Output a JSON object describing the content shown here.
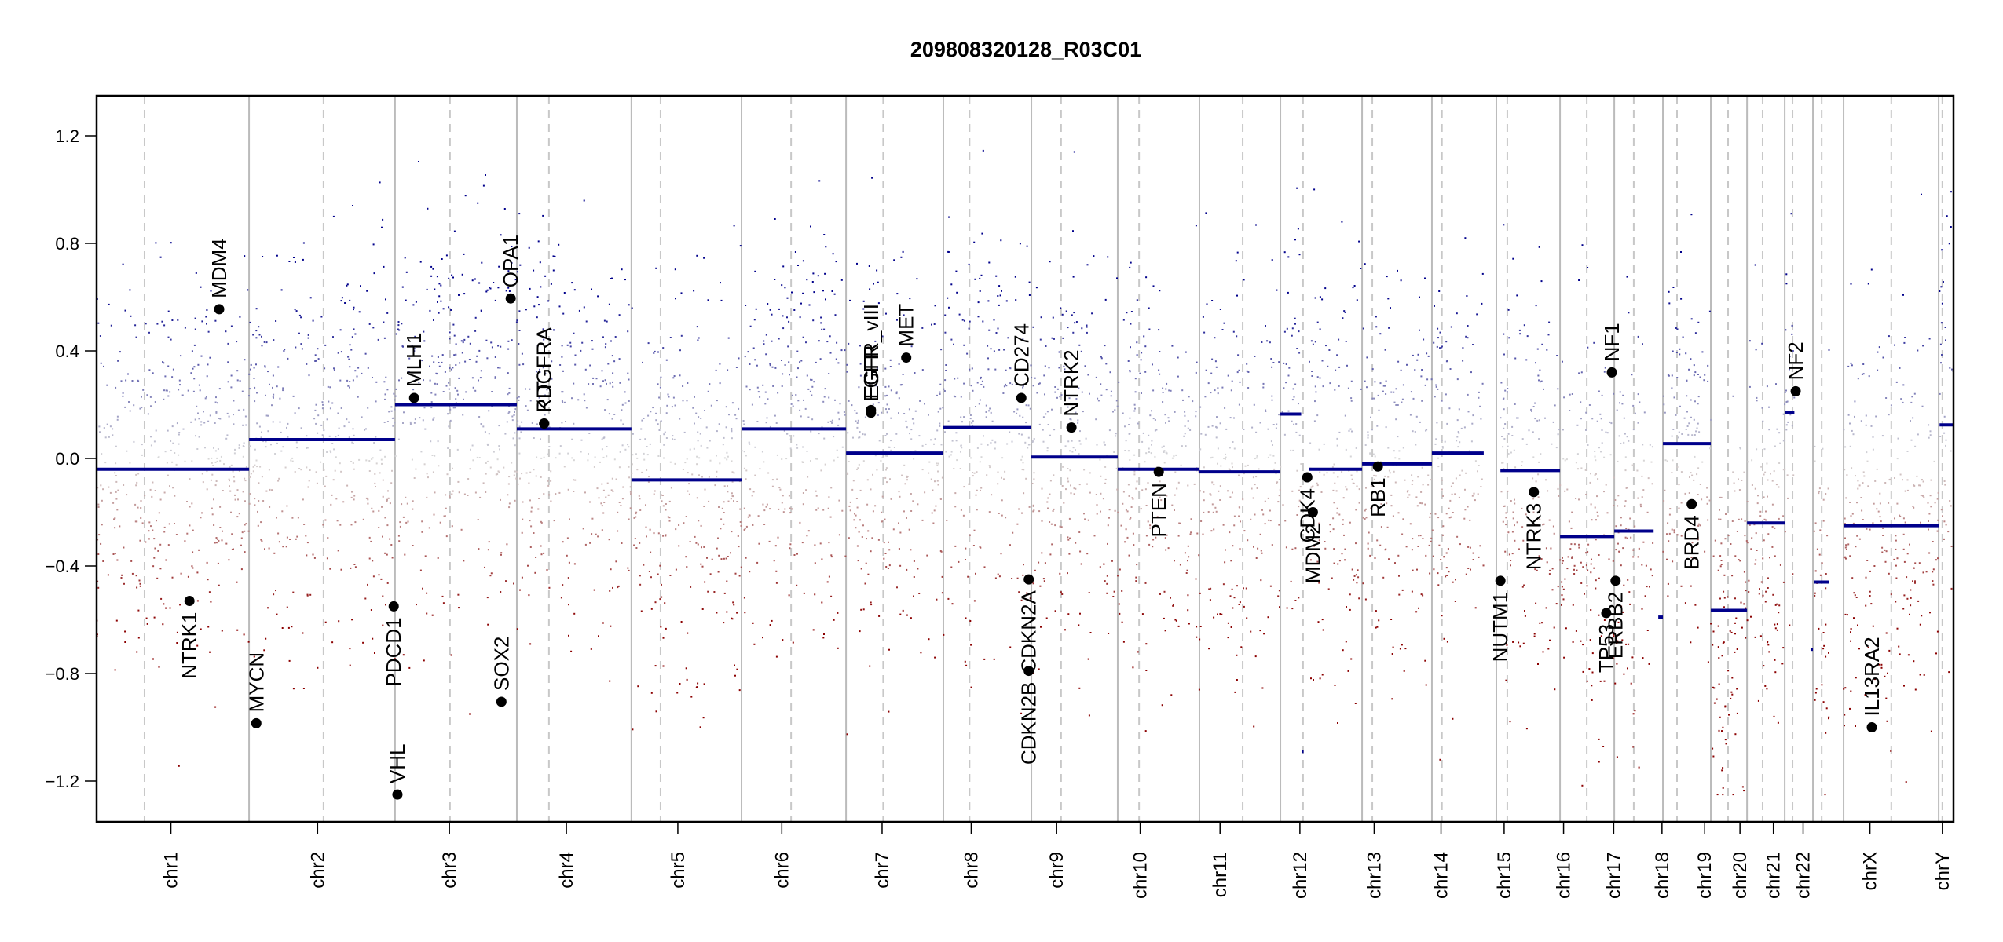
{
  "chart_data": {
    "type": "scatter",
    "title": "209808320128_R03C01",
    "xlabel": "",
    "ylabel": "",
    "ylim": [
      -1.35,
      1.35
    ],
    "yticks": [
      1.2,
      0.8,
      0.4,
      0.0,
      -0.4,
      -0.8,
      -1.2
    ],
    "ytick_labels": [
      "1.2",
      "0.8",
      "0.4",
      "0.0",
      "-0.4",
      "-0.8",
      "-1.2"
    ],
    "grid": false,
    "legend": "none",
    "point_color_high": "#00008b",
    "point_color_low": "#8b0000",
    "point_color_mid": "#d8d8d8",
    "segment_color": "#00008b",
    "boundary_color": "#bbbbbb",
    "floor_value": -1.25,
    "chromosomes": [
      {
        "name": "chr1",
        "start": 0.0,
        "end": 0.0821,
        "centromere": 0.0258
      },
      {
        "name": "chr2",
        "start": 0.0821,
        "end": 0.1607,
        "centromere": 0.1222
      },
      {
        "name": "chr3",
        "start": 0.1607,
        "end": 0.2263,
        "centromere": 0.1903
      },
      {
        "name": "chr4",
        "start": 0.2263,
        "end": 0.288,
        "centromere": 0.2436
      },
      {
        "name": "chr5",
        "start": 0.288,
        "end": 0.3473,
        "centromere": 0.3037
      },
      {
        "name": "chr6",
        "start": 0.3473,
        "end": 0.4036,
        "centromere": 0.374
      },
      {
        "name": "chr7",
        "start": 0.4036,
        "end": 0.456,
        "centromere": 0.4236
      },
      {
        "name": "chr8",
        "start": 0.456,
        "end": 0.5034,
        "centromere": 0.4701
      },
      {
        "name": "chr9",
        "start": 0.5034,
        "end": 0.5499,
        "centromere": 0.5194
      },
      {
        "name": "chr10",
        "start": 0.5499,
        "end": 0.5939,
        "centromere": 0.5614
      },
      {
        "name": "chr11",
        "start": 0.5939,
        "end": 0.6375,
        "centromere": 0.6172
      },
      {
        "name": "chr12",
        "start": 0.6375,
        "end": 0.6815,
        "centromere": 0.6497
      },
      {
        "name": "chr13",
        "start": 0.6815,
        "end": 0.7191,
        "centromere": 0.687
      },
      {
        "name": "chr14",
        "start": 0.7191,
        "end": 0.7538,
        "centromere": 0.7245
      },
      {
        "name": "chr15",
        "start": 0.7538,
        "end": 0.7881,
        "centromere": 0.7597
      },
      {
        "name": "chr16",
        "start": 0.7881,
        "end": 0.8173,
        "centromere": 0.8025
      },
      {
        "name": "chr17",
        "start": 0.8173,
        "end": 0.8435,
        "centromere": 0.8278
      },
      {
        "name": "chr18",
        "start": 0.8435,
        "end": 0.8693,
        "centromere": 0.8511
      },
      {
        "name": "chr19",
        "start": 0.8693,
        "end": 0.8888,
        "centromere": 0.8786
      },
      {
        "name": "chr20",
        "start": 0.8888,
        "end": 0.9091,
        "centromere": 0.8972
      },
      {
        "name": "chr21",
        "start": 0.9091,
        "end": 0.9243,
        "centromere": 0.9133
      },
      {
        "name": "chr22",
        "start": 0.9243,
        "end": 0.9408,
        "centromere": 0.929
      },
      {
        "name": "chrX",
        "start": 0.9408,
        "end": 0.992,
        "centromere": 0.9665
      },
      {
        "name": "chrY",
        "start": 0.992,
        "end": 1.0,
        "centromere": 0.994
      }
    ],
    "xticks": [
      {
        "label": "chr1",
        "pos": 0.04
      },
      {
        "label": "chr2",
        "pos": 0.119
      },
      {
        "label": "chr3",
        "pos": 0.19
      },
      {
        "label": "chr4",
        "pos": 0.253
      },
      {
        "label": "chr5",
        "pos": 0.313
      },
      {
        "label": "chr6",
        "pos": 0.369
      },
      {
        "label": "chr7",
        "pos": 0.423
      },
      {
        "label": "chr8",
        "pos": 0.471
      },
      {
        "label": "chr9",
        "pos": 0.517
      },
      {
        "label": "chr10",
        "pos": 0.562
      },
      {
        "label": "chr11",
        "pos": 0.605
      },
      {
        "label": "chr12",
        "pos": 0.648
      },
      {
        "label": "chr13",
        "pos": 0.688
      },
      {
        "label": "chr14",
        "pos": 0.724
      },
      {
        "label": "chr15",
        "pos": 0.758
      },
      {
        "label": "chr16",
        "pos": 0.79
      },
      {
        "label": "chr17",
        "pos": 0.817
      },
      {
        "label": "chr18",
        "pos": 0.843
      },
      {
        "label": "chr19",
        "pos": 0.866
      },
      {
        "label": "chr20",
        "pos": 0.885
      },
      {
        "label": "chr21",
        "pos": 0.903
      },
      {
        "label": "chr22",
        "pos": 0.919
      },
      {
        "label": "chrX",
        "pos": 0.955
      },
      {
        "label": "chrY",
        "pos": 0.994
      }
    ],
    "segments": [
      {
        "x0": 0.0,
        "x1": 0.0821,
        "value": -0.04
      },
      {
        "x0": 0.0821,
        "x1": 0.1607,
        "value": 0.07
      },
      {
        "x0": 0.1607,
        "x1": 0.2263,
        "value": 0.2
      },
      {
        "x0": 0.2263,
        "x1": 0.288,
        "value": 0.11
      },
      {
        "x0": 0.288,
        "x1": 0.3473,
        "value": -0.08
      },
      {
        "x0": 0.3473,
        "x1": 0.4036,
        "value": 0.11
      },
      {
        "x0": 0.4036,
        "x1": 0.456,
        "value": 0.02
      },
      {
        "x0": 0.456,
        "x1": 0.5034,
        "value": 0.115
      },
      {
        "x0": 0.5034,
        "x1": 0.5499,
        "value": 0.005
      },
      {
        "x0": 0.5499,
        "x1": 0.5939,
        "value": -0.04
      },
      {
        "x0": 0.5939,
        "x1": 0.6375,
        "value": -0.05
      },
      {
        "x0": 0.6375,
        "x1": 0.6487,
        "value": 0.165
      },
      {
        "x0": 0.653,
        "x1": 0.6815,
        "value": -0.04
      },
      {
        "x0": 0.6815,
        "x1": 0.7191,
        "value": -0.02
      },
      {
        "x0": 0.7191,
        "x1": 0.747,
        "value": 0.02
      },
      {
        "x0": 0.756,
        "x1": 0.7881,
        "value": -0.045
      },
      {
        "x0": 0.7881,
        "x1": 0.8173,
        "value": -0.29
      },
      {
        "x0": 0.8173,
        "x1": 0.8385,
        "value": -0.27
      },
      {
        "x0": 0.841,
        "x1": 0.8435,
        "value": -0.59
      },
      {
        "x0": 0.8435,
        "x1": 0.8693,
        "value": 0.055
      },
      {
        "x0": 0.8693,
        "x1": 0.8888,
        "value": -0.565
      },
      {
        "x0": 0.8888,
        "x1": 0.9091,
        "value": -0.24
      },
      {
        "x0": 0.9091,
        "x1": 0.9143,
        "value": 0.17
      },
      {
        "x0": 0.923,
        "x1": 0.9243,
        "value": -0.71
      },
      {
        "x0": 0.925,
        "x1": 0.933,
        "value": -0.46
      },
      {
        "x0": 0.9408,
        "x1": 0.992,
        "value": -0.25
      },
      {
        "x0": 0.9925,
        "x1": 1.0,
        "value": 0.125
      },
      {
        "x0": 0.649,
        "x1": 0.65,
        "value": -1.09
      }
    ],
    "genes": [
      {
        "name": "MDM4",
        "pos": 0.066,
        "value": 0.555,
        "label_side": "above"
      },
      {
        "name": "NTRK1",
        "pos": 0.05,
        "value": -0.53,
        "label_side": "below"
      },
      {
        "name": "MYCN",
        "pos": 0.086,
        "value": -0.985,
        "label_side": "above"
      },
      {
        "name": "MLH1",
        "pos": 0.171,
        "value": 0.225,
        "label_side": "above"
      },
      {
        "name": "PDCD1",
        "pos": 0.16,
        "value": -0.55,
        "label_side": "below"
      },
      {
        "name": "VHL",
        "pos": 0.162,
        "value": -1.25,
        "label_side": "above"
      },
      {
        "name": "OPA1",
        "pos": 0.223,
        "value": 0.595,
        "label_side": "above"
      },
      {
        "name": "SOX2",
        "pos": 0.218,
        "value": -0.905,
        "label_side": "above"
      },
      {
        "name": "PDGFRA",
        "pos": 0.241,
        "value": 0.13,
        "label_side": "above"
      },
      {
        "name": "KIT",
        "pos": 0.241,
        "value": 0.13,
        "label_side": "above"
      },
      {
        "name": "EGFR",
        "pos": 0.417,
        "value": 0.17,
        "label_side": "above"
      },
      {
        "name": "EGFR_vIII",
        "pos": 0.417,
        "value": 0.18,
        "label_side": "above"
      },
      {
        "name": "MET",
        "pos": 0.436,
        "value": 0.375,
        "label_side": "above"
      },
      {
        "name": "CD274",
        "pos": 0.498,
        "value": 0.225,
        "label_side": "above"
      },
      {
        "name": "CDKN2A",
        "pos": 0.502,
        "value": -0.45,
        "label_side": "below"
      },
      {
        "name": "CDKN2B",
        "pos": 0.502,
        "value": -0.79,
        "label_side": "below"
      },
      {
        "name": "NTRK2",
        "pos": 0.525,
        "value": 0.115,
        "label_side": "above"
      },
      {
        "name": "PTEN",
        "pos": 0.572,
        "value": -0.05,
        "label_side": "below"
      },
      {
        "name": "CDK4",
        "pos": 0.652,
        "value": -0.07,
        "label_side": "below"
      },
      {
        "name": "MDM2",
        "pos": 0.655,
        "value": -0.2,
        "label_side": "below"
      },
      {
        "name": "RB1",
        "pos": 0.69,
        "value": -0.03,
        "label_side": "below"
      },
      {
        "name": "NUTM1",
        "pos": 0.756,
        "value": -0.455,
        "label_side": "below"
      },
      {
        "name": "NTRK3",
        "pos": 0.774,
        "value": -0.125,
        "label_side": "below"
      },
      {
        "name": "TP53",
        "pos": 0.813,
        "value": -0.575,
        "label_side": "below"
      },
      {
        "name": "ERBB2",
        "pos": 0.818,
        "value": -0.455,
        "label_side": "below"
      },
      {
        "name": "NF1",
        "pos": 0.816,
        "value": 0.32,
        "label_side": "above"
      },
      {
        "name": "BRD4",
        "pos": 0.859,
        "value": -0.17,
        "label_side": "below"
      },
      {
        "name": "NF2",
        "pos": 0.915,
        "value": 0.25,
        "label_side": "above"
      },
      {
        "name": "IL13RA2",
        "pos": 0.956,
        "value": -1.0,
        "label_side": "above"
      }
    ]
  }
}
